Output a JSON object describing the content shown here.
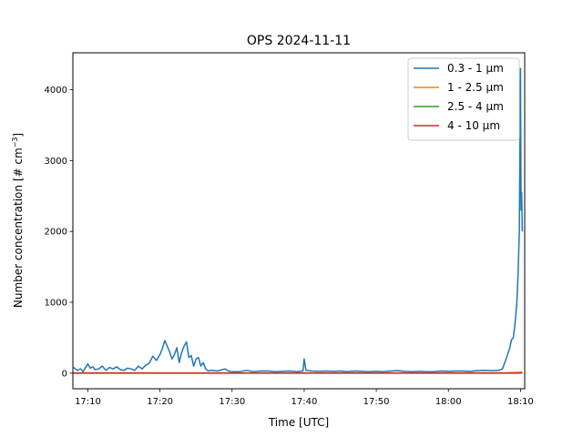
{
  "chart_data": {
    "type": "line",
    "title": "OPS 2024-11-11",
    "xlabel": "Time [UTC]",
    "ylabel_main": "Number concentration [# cm",
    "ylabel_sup": "−3",
    "ylabel_end": "]",
    "xlim": [
      "17:07:55",
      "18:10:35"
    ],
    "ylim": [
      -220,
      4520
    ],
    "xticks": [
      "17:10",
      "17:20",
      "17:30",
      "17:40",
      "17:50",
      "18:00",
      "18:10"
    ],
    "yticks": [
      0,
      1000,
      2000,
      3000,
      4000
    ],
    "grid": false,
    "legend_position": "top-right",
    "series": [
      {
        "name": "0.3 - 1 µm",
        "color": "#1f77b4",
        "points": [
          [
            "17:08:00",
            80
          ],
          [
            "17:08:30",
            40
          ],
          [
            "17:09:00",
            60
          ],
          [
            "17:09:20",
            20
          ],
          [
            "17:09:40",
            80
          ],
          [
            "17:10:00",
            130
          ],
          [
            "17:10:20",
            70
          ],
          [
            "17:10:40",
            90
          ],
          [
            "17:11:00",
            50
          ],
          [
            "17:11:30",
            60
          ],
          [
            "17:12:00",
            100
          ],
          [
            "17:12:30",
            40
          ],
          [
            "17:13:00",
            80
          ],
          [
            "17:13:30",
            60
          ],
          [
            "17:14:00",
            90
          ],
          [
            "17:14:30",
            50
          ],
          [
            "17:15:00",
            40
          ],
          [
            "17:15:30",
            70
          ],
          [
            "17:16:00",
            60
          ],
          [
            "17:16:30",
            40
          ],
          [
            "17:17:00",
            100
          ],
          [
            "17:17:30",
            60
          ],
          [
            "17:18:00",
            110
          ],
          [
            "17:18:30",
            140
          ],
          [
            "17:19:00",
            240
          ],
          [
            "17:19:30",
            180
          ],
          [
            "17:20:00",
            260
          ],
          [
            "17:20:20",
            350
          ],
          [
            "17:20:40",
            460
          ],
          [
            "17:21:00",
            380
          ],
          [
            "17:21:20",
            300
          ],
          [
            "17:21:40",
            200
          ],
          [
            "17:22:00",
            260
          ],
          [
            "17:22:20",
            360
          ],
          [
            "17:22:40",
            150
          ],
          [
            "17:23:00",
            290
          ],
          [
            "17:23:20",
            380
          ],
          [
            "17:23:40",
            440
          ],
          [
            "17:24:00",
            220
          ],
          [
            "17:24:20",
            250
          ],
          [
            "17:24:40",
            100
          ],
          [
            "17:25:00",
            200
          ],
          [
            "17:25:20",
            220
          ],
          [
            "17:25:40",
            100
          ],
          [
            "17:26:00",
            150
          ],
          [
            "17:26:20",
            60
          ],
          [
            "17:26:40",
            30
          ],
          [
            "17:27:00",
            40
          ],
          [
            "17:28:00",
            30
          ],
          [
            "17:29:00",
            60
          ],
          [
            "17:29:30",
            30
          ],
          [
            "17:30:00",
            20
          ],
          [
            "17:31:00",
            20
          ],
          [
            "17:32:00",
            40
          ],
          [
            "17:33:00",
            20
          ],
          [
            "17:34:00",
            30
          ],
          [
            "17:35:00",
            30
          ],
          [
            "17:36:00",
            20
          ],
          [
            "17:37:00",
            25
          ],
          [
            "17:38:00",
            30
          ],
          [
            "17:39:00",
            20
          ],
          [
            "17:39:50",
            30
          ],
          [
            "17:40:00",
            200
          ],
          [
            "17:40:15",
            40
          ],
          [
            "17:41:00",
            30
          ],
          [
            "17:42:00",
            25
          ],
          [
            "17:43:00",
            30
          ],
          [
            "17:44:00",
            25
          ],
          [
            "17:45:00",
            30
          ],
          [
            "17:46:00",
            20
          ],
          [
            "17:47:00",
            30
          ],
          [
            "17:48:00",
            25
          ],
          [
            "17:49:00",
            20
          ],
          [
            "17:50:00",
            25
          ],
          [
            "17:51:00",
            20
          ],
          [
            "17:52:00",
            30
          ],
          [
            "17:53:00",
            35
          ],
          [
            "17:54:00",
            25
          ],
          [
            "17:55:00",
            20
          ],
          [
            "17:56:00",
            25
          ],
          [
            "17:57:00",
            20
          ],
          [
            "17:58:00",
            20
          ],
          [
            "17:59:00",
            30
          ],
          [
            "18:00:00",
            25
          ],
          [
            "18:01:00",
            30
          ],
          [
            "18:02:00",
            30
          ],
          [
            "18:03:00",
            25
          ],
          [
            "18:04:00",
            35
          ],
          [
            "18:05:00",
            40
          ],
          [
            "18:06:00",
            35
          ],
          [
            "18:07:00",
            40
          ],
          [
            "18:07:30",
            60
          ],
          [
            "18:08:00",
            200
          ],
          [
            "18:08:30",
            350
          ],
          [
            "18:08:45",
            470
          ],
          [
            "18:09:00",
            500
          ],
          [
            "18:09:15",
            700
          ],
          [
            "18:09:30",
            1000
          ],
          [
            "18:09:40",
            1380
          ],
          [
            "18:09:50",
            2000
          ],
          [
            "18:10:00",
            4300
          ],
          [
            "18:10:05",
            2300
          ],
          [
            "18:10:10",
            2550
          ],
          [
            "18:10:15",
            2000
          ]
        ]
      },
      {
        "name": "1 - 2.5 µm",
        "color": "#ff7f0e",
        "points": [
          [
            "17:08:00",
            5
          ],
          [
            "17:30:00",
            4
          ],
          [
            "17:50:00",
            4
          ],
          [
            "18:08:00",
            5
          ],
          [
            "18:10:15",
            15
          ]
        ]
      },
      {
        "name": "2.5 - 4 µm",
        "color": "#2ca02c",
        "points": [
          [
            "17:08:00",
            1
          ],
          [
            "17:30:00",
            1
          ],
          [
            "17:50:00",
            1
          ],
          [
            "18:08:00",
            1
          ],
          [
            "18:10:15",
            3
          ]
        ]
      },
      {
        "name": "4 - 10 µm",
        "color": "#d62728",
        "points": [
          [
            "17:08:00",
            0
          ],
          [
            "17:30:00",
            0
          ],
          [
            "17:50:00",
            0
          ],
          [
            "18:08:00",
            0
          ],
          [
            "18:10:15",
            1
          ]
        ]
      }
    ]
  }
}
